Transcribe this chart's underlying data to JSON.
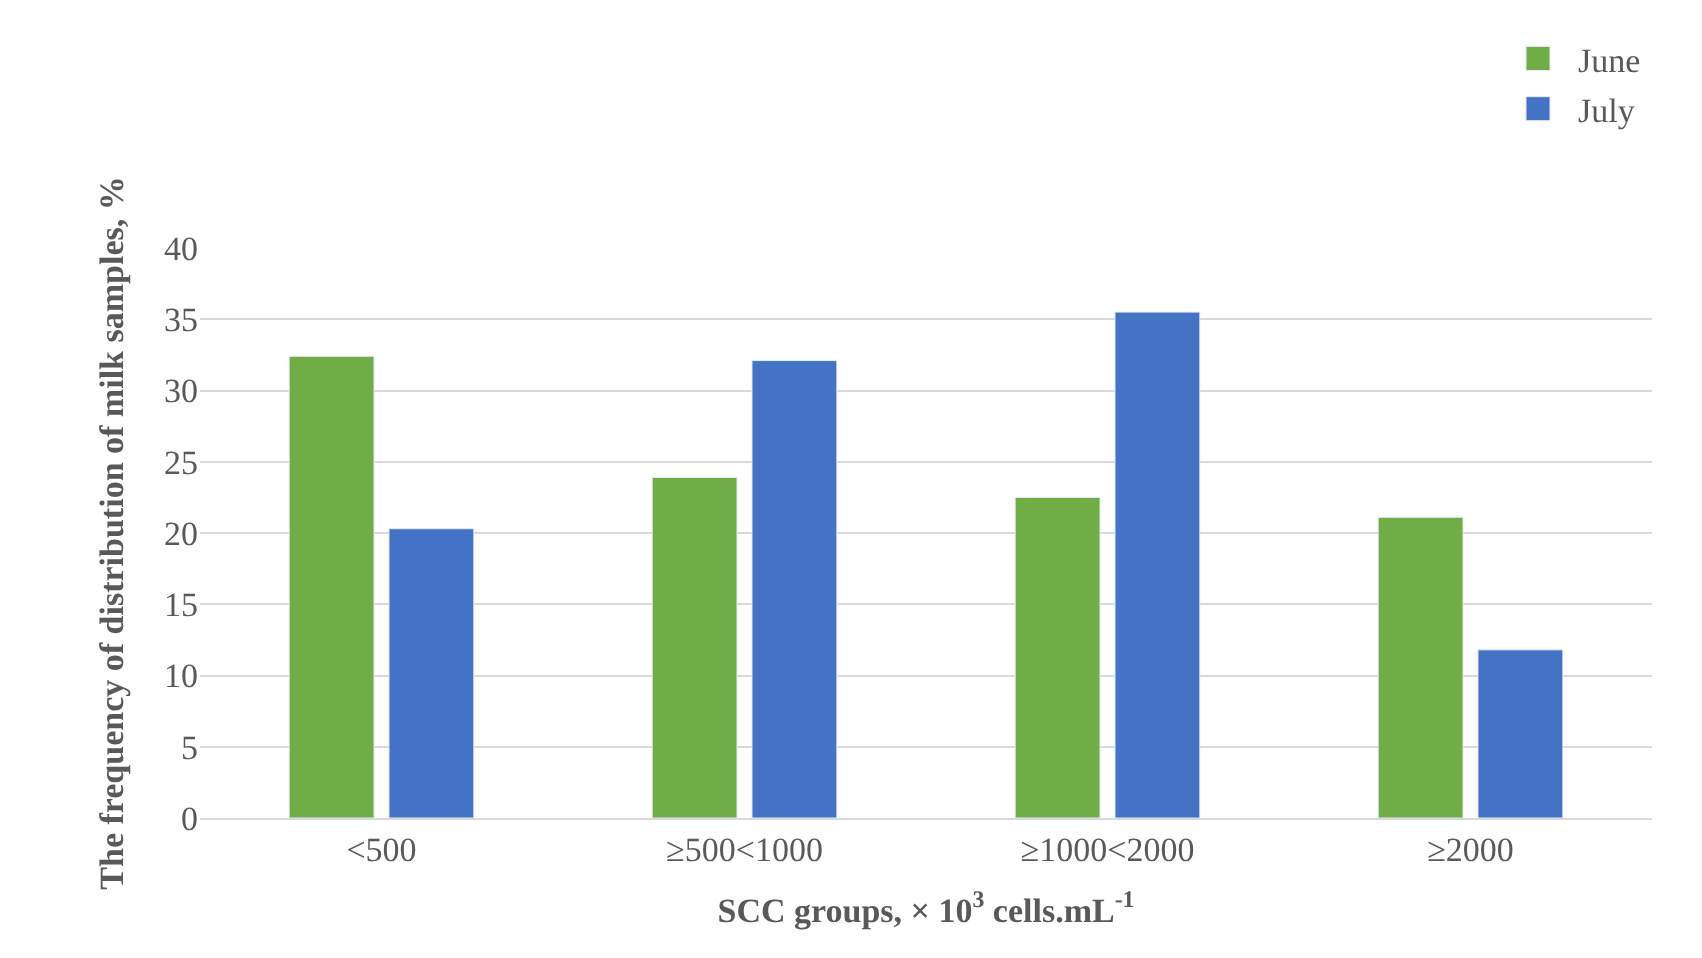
{
  "chart_data": {
    "type": "bar",
    "xlabel": "SCC groups, × 10$^{3}$ cells.mL$^{-1}$",
    "ylabel": "The frequency of distribution of milk samples, %",
    "categories": [
      "<500",
      "≥500<1000",
      "≥1000<2000",
      "≥2000"
    ],
    "series": [
      {
        "name": "June",
        "color": "#70ad47",
        "values": [
          32.4,
          23.9,
          22.5,
          21.1
        ]
      },
      {
        "name": "July",
        "color": "#4472c4",
        "values": [
          20.3,
          32.1,
          35.5,
          11.8
        ]
      }
    ],
    "ylim": [
      0,
      40
    ],
    "yticks": [
      0,
      5,
      10,
      15,
      20,
      25,
      30,
      35,
      40
    ],
    "grid": "y",
    "legend": "top right"
  }
}
